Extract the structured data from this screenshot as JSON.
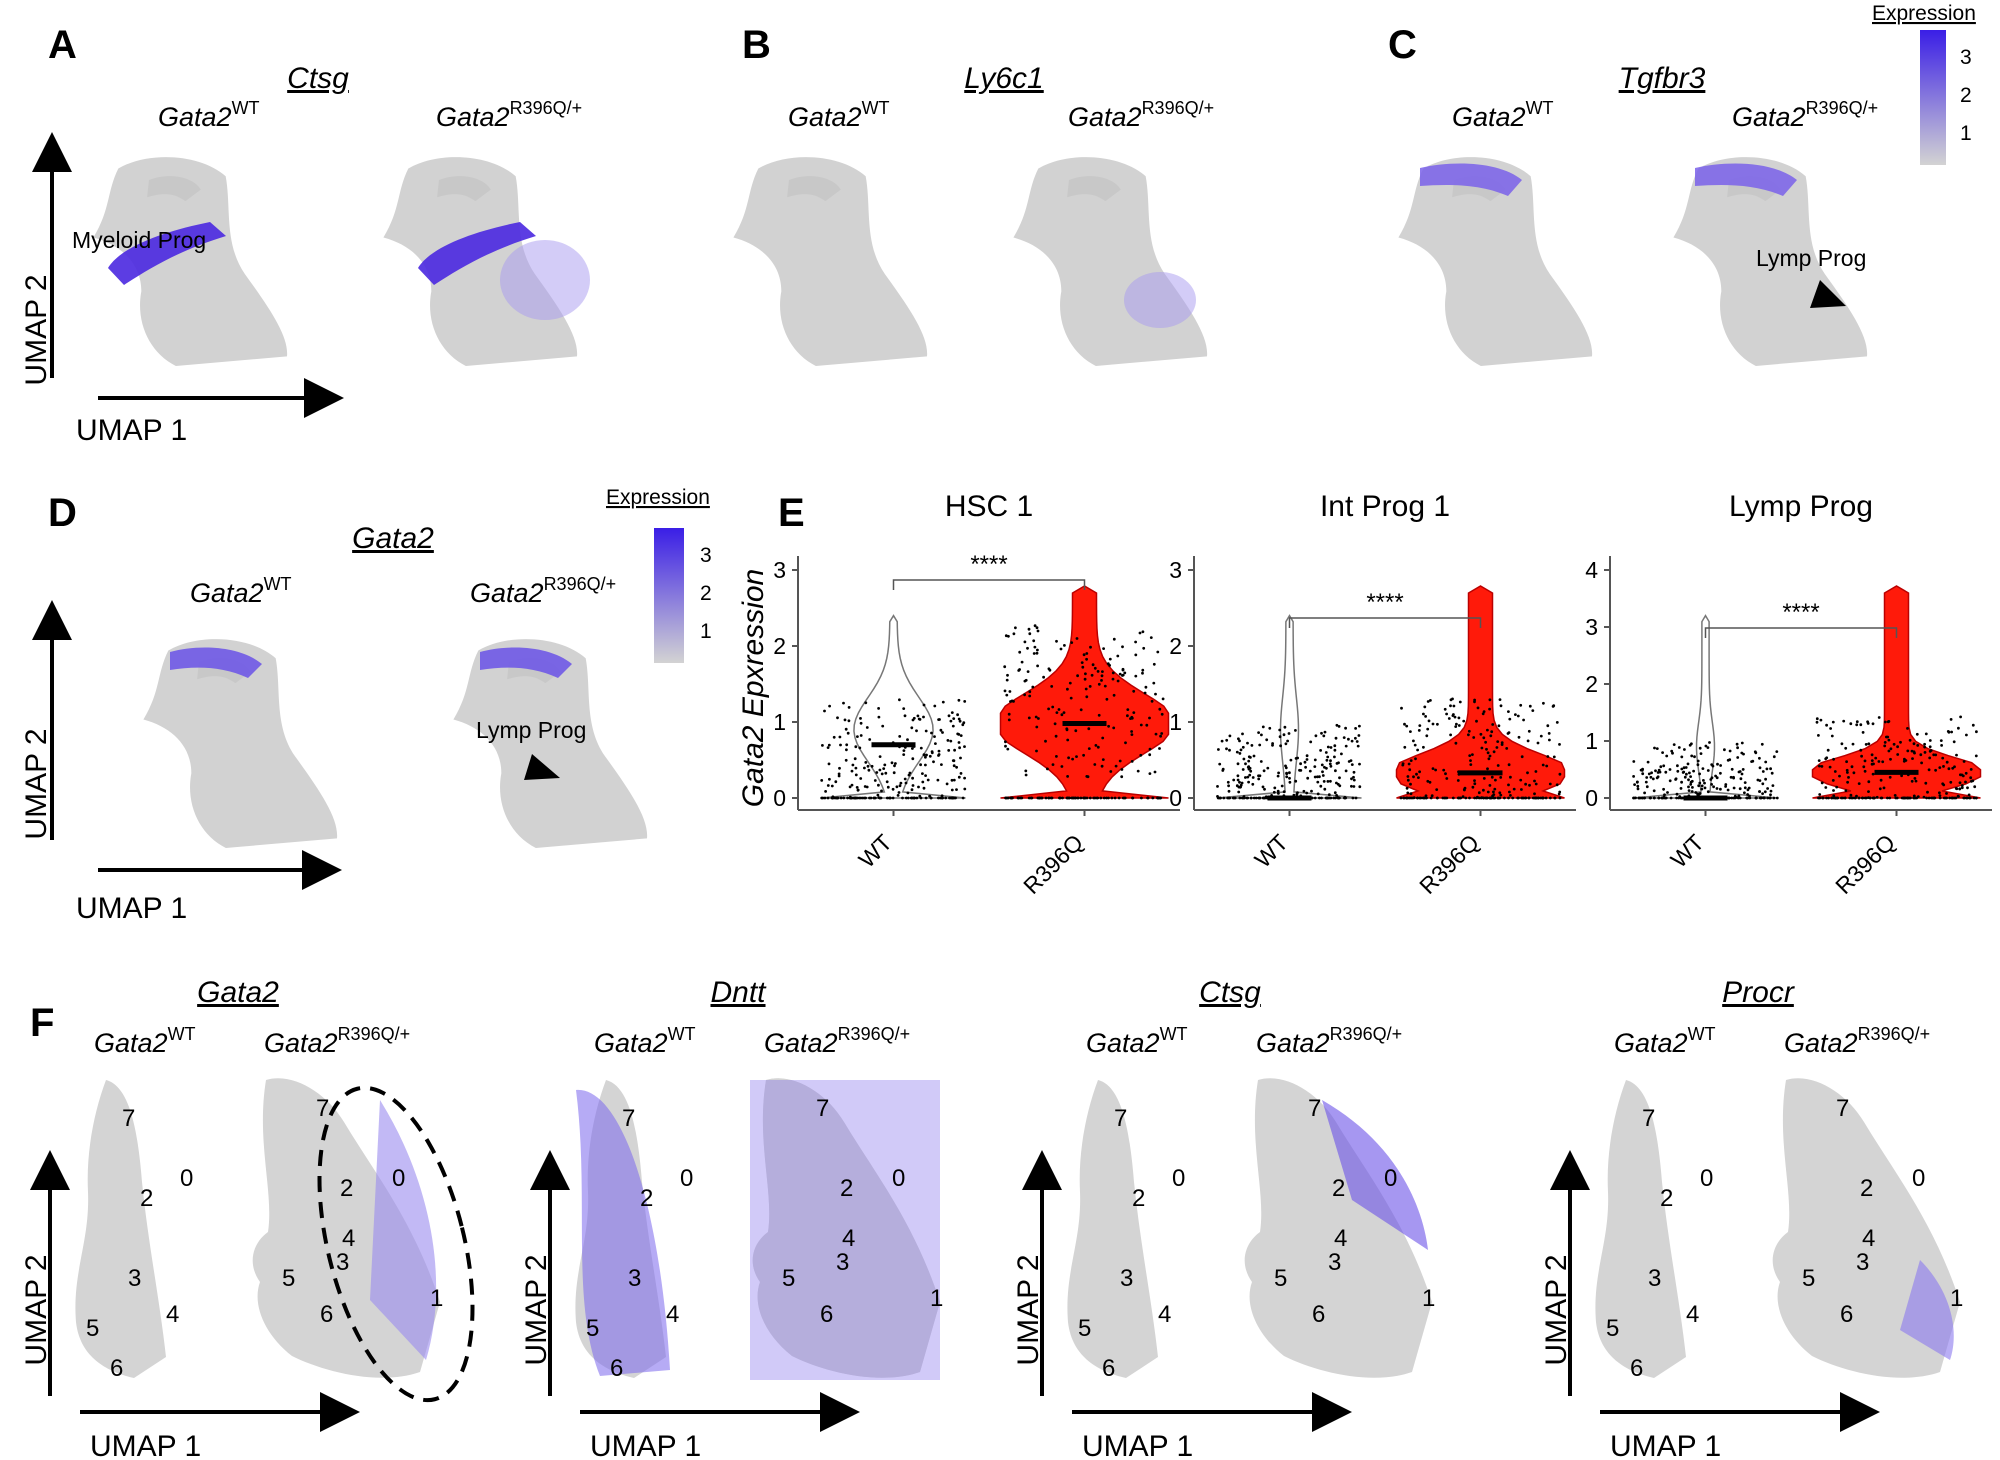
{
  "figure": {
    "panel_labels": [
      "A",
      "B",
      "C",
      "D",
      "E",
      "F"
    ],
    "umap_axes": {
      "x": "UMAP 1",
      "y": "UMAP 2"
    },
    "genotypes": {
      "wt_base": "Gata2",
      "wt_sup": "WT",
      "mut_base": "Gata2",
      "mut_sup": "R396Q/+"
    },
    "legend": {
      "title": "Expression",
      "ticks": [
        "3",
        "2",
        "1"
      ],
      "color_high": "#3a1ee6",
      "color_low": "#d3d3d3"
    },
    "panels_top": [
      {
        "label": "A",
        "gene": "Ctsg",
        "annotation": "Myeloid Prog"
      },
      {
        "label": "B",
        "gene": "Ly6c1"
      },
      {
        "label": "C",
        "gene": "Tgfbr3",
        "annotation": "Lymp Prog"
      }
    ],
    "panel_d": {
      "label": "D",
      "gene": "Gata2",
      "annotation": "Lymp Prog"
    },
    "panel_f": {
      "label": "F",
      "genes": [
        "Gata2",
        "Dntt",
        "Ctsg",
        "Procr"
      ],
      "clusters": [
        "7",
        "0",
        "2",
        "3",
        "4",
        "5",
        "6",
        "1"
      ]
    }
  },
  "chart_data": [
    {
      "type": "violin",
      "title": "HSC 1",
      "ylabel": "Gata2 Epxression",
      "categories": [
        "WT",
        "R396Q"
      ],
      "ylim": [
        0,
        3
      ],
      "yticks": [
        "0",
        "1",
        "2",
        "3"
      ],
      "medians": [
        0.7,
        0.98
      ],
      "significance": "****",
      "colors": {
        "WT": "#ffffff",
        "R396Q": "#ff1a0a"
      }
    },
    {
      "type": "violin",
      "title": "Int Prog 1",
      "categories": [
        "WT",
        "R396Q"
      ],
      "ylim": [
        0,
        3
      ],
      "yticks": [
        "0",
        "1",
        "2",
        "3"
      ],
      "medians": [
        0.0,
        0.33
      ],
      "significance": "****",
      "colors": {
        "WT": "#ffffff",
        "R396Q": "#ff1a0a"
      }
    },
    {
      "type": "violin",
      "title": "Lymp Prog",
      "categories": [
        "WT",
        "R396Q"
      ],
      "ylim": [
        0,
        4
      ],
      "yticks": [
        "0",
        "1",
        "2",
        "3",
        "4"
      ],
      "medians": [
        0.0,
        0.45
      ],
      "significance": "****",
      "colors": {
        "WT": "#ffffff",
        "R396Q": "#ff1a0a"
      }
    }
  ]
}
